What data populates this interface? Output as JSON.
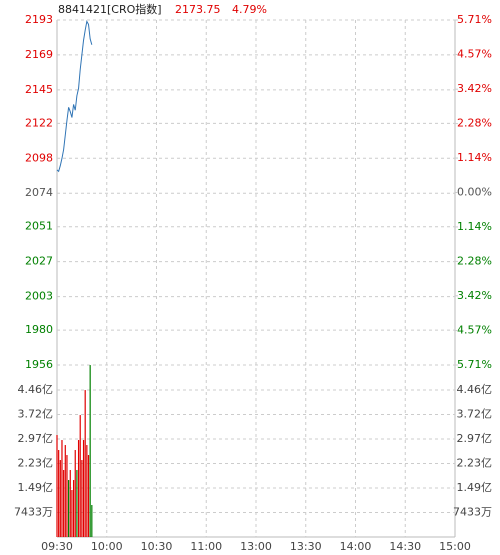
{
  "header": {
    "name": "8841421[CRO指数]",
    "price": 2173.75,
    "change": "4.79%"
  },
  "chart_data": [
    {
      "type": "line",
      "x": [
        0,
        1,
        2,
        3,
        4,
        5,
        6,
        7,
        8,
        9,
        10,
        11,
        12,
        13,
        14,
        15,
        16,
        17,
        18,
        19,
        20,
        21
      ],
      "series": [
        {
          "color": "#2f74b5",
          "values": [
            2090,
            2089,
            2093,
            2098,
            2104,
            2114,
            2124,
            2133,
            2130,
            2126,
            2135,
            2131,
            2141,
            2146,
            2159,
            2169,
            2179,
            2186,
            2192,
            2190,
            2180,
            2176
          ]
        }
      ],
      "xlim": [
        0,
        240
      ],
      "ylim": [
        1956,
        2193
      ],
      "yticks": [
        2193,
        2169,
        2145,
        2122,
        2098,
        2074,
        2051,
        2027,
        2003,
        1980,
        1956
      ],
      "y2lim": [
        -5.71,
        5.71
      ],
      "y2ticks": [
        {
          "value": 5.71,
          "label": "5.71%"
        },
        {
          "value": 4.57,
          "label": "4.57%"
        },
        {
          "value": 3.42,
          "label": "3.42%"
        },
        {
          "value": 2.28,
          "label": "2.28%"
        },
        {
          "value": 1.14,
          "label": "1.14%"
        },
        {
          "value": 0,
          "label": "0.00%"
        },
        {
          "value": -1.14,
          "label": "1.14%"
        },
        {
          "value": -2.28,
          "label": "2.28%"
        },
        {
          "value": -3.42,
          "label": "3.42%"
        },
        {
          "value": -4.57,
          "label": "4.57%"
        },
        {
          "value": -5.71,
          "label": "5.71%"
        }
      ],
      "up_color": "#e00000",
      "down_color": "#008000",
      "flat_color": "#555555",
      "grid": true
    },
    {
      "type": "bar",
      "x": [
        0,
        1,
        2,
        3,
        4,
        5,
        6,
        7,
        8,
        9,
        10,
        11,
        12,
        13,
        14,
        15,
        16,
        17,
        18,
        19,
        20,
        21
      ],
      "values": [
        30950,
        26400,
        23360,
        29430,
        20330,
        27910,
        24880,
        17290,
        20330,
        14260,
        17290,
        26400,
        20330,
        29430,
        37010,
        23360,
        29430,
        44600,
        27910,
        24880,
        52180,
        9710
      ],
      "colors": [
        "#e00000",
        "#e00000",
        "#e00000",
        "#e00000",
        "#e00000",
        "#e00000",
        "#e00000",
        "#008000",
        "#e00000",
        "#e00000",
        "#e00000",
        "#e00000",
        "#008000",
        "#e00000",
        "#e00000",
        "#e00000",
        "#e00000",
        "#e00000",
        "#e00000",
        "#e00000",
        "#008000",
        "#008000"
      ],
      "xlim": [
        0,
        240
      ],
      "xticks": [
        {
          "value": 0,
          "label": "09:30"
        },
        {
          "value": 30,
          "label": "10:00"
        },
        {
          "value": 60,
          "label": "10:30"
        },
        {
          "value": 90,
          "label": "11:00"
        },
        {
          "value": 120,
          "label": "13:00"
        },
        {
          "value": 150,
          "label": "13:30"
        },
        {
          "value": 180,
          "label": "14:00"
        },
        {
          "value": 210,
          "label": "14:30"
        },
        {
          "value": 240,
          "label": "15:00"
        }
      ],
      "ylim": [
        0,
        52200
      ],
      "yticks": [
        {
          "value": 44598,
          "label": "4.46亿"
        },
        {
          "value": 37165,
          "label": "3.72亿"
        },
        {
          "value": 29732,
          "label": "2.97亿"
        },
        {
          "value": 22299,
          "label": "2.23亿"
        },
        {
          "value": 14866,
          "label": "1.49亿"
        },
        {
          "value": 7433,
          "label": "7433万"
        }
      ],
      "grid": true
    }
  ]
}
